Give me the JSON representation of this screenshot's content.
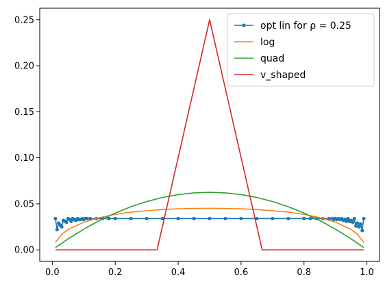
{
  "chart_data": {
    "type": "line",
    "title": "",
    "xlabel": "",
    "ylabel": "",
    "xlim": [
      -0.04,
      1.04
    ],
    "ylim": [
      -0.0125,
      0.2625
    ],
    "x_ticks": [
      0.0,
      0.2,
      0.4,
      0.6,
      0.8,
      1.0
    ],
    "x_tick_labels": [
      "0.0",
      "0.2",
      "0.4",
      "0.6",
      "0.8",
      "1.0"
    ],
    "y_ticks": [
      0.0,
      0.05,
      0.1,
      0.15,
      0.2,
      0.25
    ],
    "y_tick_labels": [
      "0.00",
      "0.05",
      "0.10",
      "0.15",
      "0.20",
      "0.25"
    ],
    "grid": false,
    "legend_position": "top-right",
    "series": [
      {
        "name": "opt lin for ρ = 0.25",
        "color": "#1f77b4",
        "marker": "dot",
        "x": [
          0.01,
          0.015,
          0.02,
          0.025,
          0.03,
          0.035,
          0.04,
          0.045,
          0.05,
          0.055,
          0.06,
          0.065,
          0.07,
          0.075,
          0.08,
          0.085,
          0.09,
          0.095,
          0.1,
          0.105,
          0.11,
          0.12,
          0.14,
          0.16,
          0.18,
          0.2,
          0.25,
          0.3,
          0.35,
          0.4,
          0.45,
          0.5,
          0.55,
          0.6,
          0.65,
          0.7,
          0.75,
          0.8,
          0.82,
          0.84,
          0.86,
          0.88,
          0.89,
          0.895,
          0.9,
          0.905,
          0.91,
          0.915,
          0.92,
          0.925,
          0.93,
          0.935,
          0.94,
          0.945,
          0.95,
          0.955,
          0.96,
          0.965,
          0.97,
          0.975,
          0.98,
          0.985,
          0.99
        ],
        "y": [
          0.034,
          0.022,
          0.029,
          0.027,
          0.025,
          0.032,
          0.031,
          0.03,
          0.034,
          0.033,
          0.031,
          0.034,
          0.033,
          0.032,
          0.034,
          0.033,
          0.033,
          0.034,
          0.033,
          0.034,
          0.034,
          0.034,
          0.034,
          0.034,
          0.034,
          0.034,
          0.034,
          0.034,
          0.034,
          0.034,
          0.034,
          0.034,
          0.034,
          0.034,
          0.034,
          0.034,
          0.034,
          0.034,
          0.034,
          0.034,
          0.034,
          0.034,
          0.034,
          0.033,
          0.034,
          0.033,
          0.034,
          0.033,
          0.034,
          0.032,
          0.033,
          0.031,
          0.034,
          0.031,
          0.032,
          0.03,
          0.034,
          0.026,
          0.029,
          0.025,
          0.028,
          0.021,
          0.034
        ]
      },
      {
        "name": "log",
        "color": "#ff7f0e",
        "marker": "none",
        "x": [
          0.01,
          0.03,
          0.05,
          0.08,
          0.1,
          0.15,
          0.2,
          0.25,
          0.3,
          0.35,
          0.4,
          0.45,
          0.5,
          0.55,
          0.6,
          0.65,
          0.7,
          0.75,
          0.8,
          0.85,
          0.9,
          0.92,
          0.95,
          0.97,
          0.99
        ],
        "y": [
          0.008,
          0.017,
          0.022,
          0.027,
          0.03,
          0.035,
          0.0385,
          0.041,
          0.0425,
          0.0438,
          0.0446,
          0.045,
          0.0452,
          0.045,
          0.0446,
          0.0438,
          0.0425,
          0.041,
          0.0385,
          0.035,
          0.03,
          0.027,
          0.022,
          0.017,
          0.008
        ]
      },
      {
        "name": "quad",
        "color": "#2ca02c",
        "marker": "none",
        "x": [
          0.01,
          0.05,
          0.1,
          0.15,
          0.2,
          0.25,
          0.3,
          0.35,
          0.4,
          0.45,
          0.5,
          0.55,
          0.6,
          0.65,
          0.7,
          0.75,
          0.8,
          0.85,
          0.9,
          0.95,
          0.99
        ],
        "y": [
          0.0025,
          0.0119,
          0.0225,
          0.0319,
          0.04,
          0.0469,
          0.0525,
          0.0569,
          0.06,
          0.0619,
          0.0625,
          0.0619,
          0.06,
          0.0569,
          0.0525,
          0.0469,
          0.04,
          0.0319,
          0.0225,
          0.0119,
          0.0025
        ]
      },
      {
        "name": "v_shaped",
        "color": "#d62728",
        "marker": "none",
        "x": [
          0.01,
          0.333,
          0.5,
          0.667,
          0.99
        ],
        "y": [
          0.0,
          0.0,
          0.25,
          0.0,
          0.0
        ]
      }
    ]
  }
}
